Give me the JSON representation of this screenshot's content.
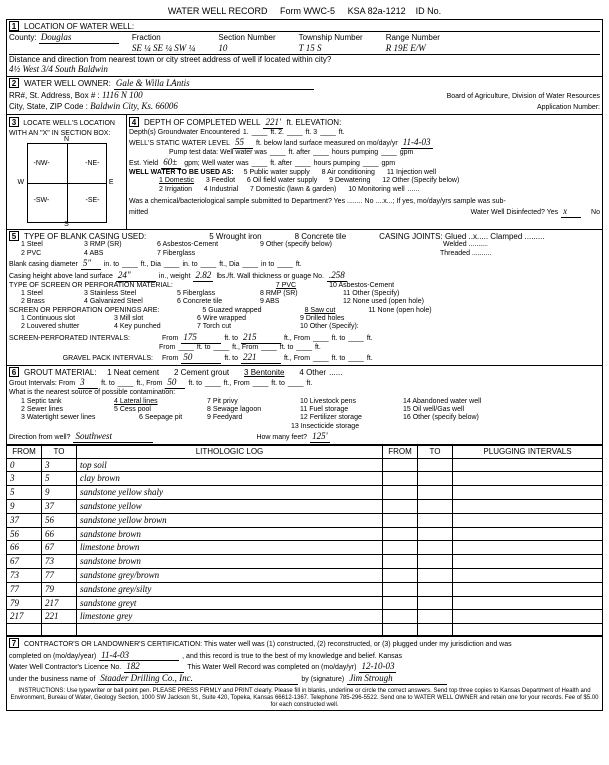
{
  "header": {
    "title": "WATER WELL RECORD",
    "form": "Form WWC-5",
    "ksa": "KSA 82a-1212",
    "idno_label": "ID No."
  },
  "s1": {
    "label": "LOCATION OF WATER WELL:",
    "county_label": "County:",
    "county": "Douglas",
    "fraction_label": "Fraction",
    "fraction": "SE ¼ SE ¼ SW ¼",
    "section_label": "Section Number",
    "section": "10",
    "township_label": "Township Number",
    "township": "T 15 S",
    "range_label": "Range Number",
    "range": "R 19E E/W",
    "dist_label": "Distance and direction from nearest town or city street address of well if located within city?",
    "dist": "4½ West 3/4 South Baldwin"
  },
  "s2": {
    "label": "WATER WELL OWNER:",
    "owner": "Gale & Willa LAntis",
    "addr_label": "RR#, St. Address, Box #   :",
    "addr": "1116 N 100",
    "city_label": "City, State, ZIP Code       :",
    "city": "Baldwin City, Ks. 66006",
    "board": "Board of Agriculture, Division of Water Resources",
    "appno": "Application Number:"
  },
  "s3": {
    "label": "LOCATE WELL'S LOCATION WITH AN \"X\" IN SECTION BOX:"
  },
  "s4": {
    "label": "DEPTH OF COMPLETED WELL",
    "depth": "221'",
    "elev": "ft. ELEVATION:",
    "gw": "Depth(s) Groundwater Encountered",
    "gw1": "1.",
    "gw2": "ft. 2.",
    "gw3": "ft. 3",
    "gw4": "ft.",
    "static_label": "WELL'S STATIC WATER LEVEL",
    "static": "55",
    "static2": "ft. below land surface measured on mo/day/yr",
    "static_date": "11-4-03",
    "pump": "Pump test data: Well water was",
    "pump2": "ft. after",
    "pump3": "hours pumping",
    "pump4": "gpm",
    "est": "Est. Yield",
    "est_v": "60±",
    "est2": "gpm; Well water was",
    "est3": "ft. after",
    "est4": "hours pumping",
    "est5": "gpm",
    "use_label": "WELL WATER TO BE USED AS:",
    "use5": "5 Public water supply",
    "use8": "8 Air conditioning",
    "use11": "11 Injection well",
    "use1": "1 Domestic",
    "use3": "3 Feedlot",
    "use6": "6 Oil field water supply",
    "use9": "9 Dewatering",
    "use12": "12 Other (Specify below)",
    "use2": "2 Irrigation",
    "use4": "4 Industrial",
    "use7": "7 Domestic (lawn & garden)",
    "use10": "10 Monitoring well",
    "chem": "Was a chemical/bacteriological sample submitted to Department? Yes ........ No ....x...; If yes, mo/day/yrs sample was sub-",
    "chem2": "mitted",
    "chem3": "Water Well Disinfected? Yes",
    "chem3x": "x",
    "chem4": "No"
  },
  "s5": {
    "label": "TYPE OF BLANK CASING USED:",
    "c1": "1 Steel",
    "c3": "3 RMP (SR)",
    "c5": "5 Wrought iron",
    "c8": "8 Concrete tile",
    "cj": "CASING JOINTS: Glued ..x..... Clamped .........",
    "c2": "2 PVC",
    "c4": "4 ABS",
    "c6": "6 Asbestos-Cement",
    "c9": "9 Other (specify below)",
    "cjw": "Welded ..........",
    "cjt": "Threaded ..........",
    "c7": "7 Fiberglass",
    "dia_label": "Blank casing diameter",
    "dia": "5\"",
    "dia2": "in. to",
    "dia3": "ft., Dia",
    "dia4": "in. to",
    "dia5": "ft., Dia",
    "dia6": "in to",
    "dia7": "ft.",
    "ht_label": "Casing height above land surface",
    "ht": "24\"",
    "wt_label": "in., weight",
    "wt": "2.82",
    "wt2": "lbs./ft. Wall thickness or guage No.",
    "gauge": ".258",
    "screen_label": "TYPE OF SCREEN OR PERFORATION MATERIAL:",
    "s1": "1 Steel",
    "s3": "3 Stainless Steel",
    "s5": "5 Fiberglass",
    "s7": "7 PVC",
    "s10": "10 Asbestos-Cement",
    "s2": "2 Brass",
    "s4": "4 Galvanized Steel",
    "s6": "6 Concrete tile",
    "s8": "8 RMP (SR)",
    "s11": "11 Other (Specify)",
    "s9": "9 ABS",
    "s12": "12 None used (open hole)",
    "open_label": "SCREEN OR PERFORATION OPENINGS ARE:",
    "o1": "1 Continuous slot",
    "o3": "3 Mill slot",
    "o5": "5 Guazed wrapped",
    "o8": "8 Saw cut",
    "o11": "11 None (open hole)",
    "o2": "2 Louvered shutter",
    "o4": "4 Key punched",
    "o6": "6 Wire wrapped",
    "o9": "9 Drilled holes",
    "o7": "7 Torch cut",
    "o10": "10 Other (Specify):",
    "spi": "SCREEN-PERFORATED INTERVALS:",
    "spi_f1": "175",
    "spi_t1": "215",
    "gpi": "GRAVEL PACK INTERVALS:",
    "gpi_f1": "50",
    "gpi_t1": "221",
    "from": "From",
    "to": "ft. to",
    "ft": "ft., From",
    "ft2": "ft. to",
    "ft3": "ft."
  },
  "s6": {
    "label": "GROUT MATERIAL:",
    "g1": "1 Neat cement",
    "g2": "2 Cement grout",
    "g3": "3 Bentonite",
    "g4": "4 Other",
    "gi": "Grout Intervals: From",
    "gi_f": "3",
    "gi_t": "ft. to",
    "gi_f2": "ft., From",
    "gi_v2": "50",
    "gi_t2": "ft. to",
    "gi_t3": "ft., From",
    "gi_t4": "ft. to",
    "gi_t5": "ft.",
    "contam": "What is the nearest source of possible contamination:",
    "p1": "1 Septic tank",
    "p4": "4 Lateral lines",
    "p7": "7 Pit privy",
    "p10": "10 Livestock pens",
    "p14": "14 Abandoned water well",
    "p2": "2 Sewer lines",
    "p5": "5 Cess pool",
    "p8": "8 Sewage lagoon",
    "p11": "11 Fuel storage",
    "p15": "15 Oil well/Gas well",
    "p3": "3 Watertight sewer lines",
    "p6": "6 Seepage pit",
    "p9": "9 Feedyard",
    "p12": "12 Fertilizer storage",
    "p16": "16 Other (specify below)",
    "p13": "13 Insecticide storage",
    "dir_label": "Direction from well?",
    "dir": "Southwest",
    "feet_label": "How many feet?",
    "feet": "125'"
  },
  "log": {
    "h_from": "FROM",
    "h_to": "TO",
    "h_lith": "LITHOLOGIC LOG",
    "h_plug": "PLUGGING INTERVALS",
    "rows": [
      {
        "f": "0",
        "t": "3",
        "l": "top soil"
      },
      {
        "f": "3",
        "t": "5",
        "l": "clay brown"
      },
      {
        "f": "5",
        "t": "9",
        "l": "sandstone yellow shaly"
      },
      {
        "f": "9",
        "t": "37",
        "l": "sandstone yellow"
      },
      {
        "f": "37",
        "t": "56",
        "l": "sandstone yellow brown"
      },
      {
        "f": "56",
        "t": "66",
        "l": "sandstone brown"
      },
      {
        "f": "66",
        "t": "67",
        "l": "limestone brown"
      },
      {
        "f": "67",
        "t": "73",
        "l": "sandstone brown"
      },
      {
        "f": "73",
        "t": "77",
        "l": "sandstone grey/brown"
      },
      {
        "f": "77",
        "t": "79",
        "l": "sandstone grey/silty"
      },
      {
        "f": "79",
        "t": "217",
        "l": "sandstone greyt"
      },
      {
        "f": "217",
        "t": "221",
        "l": "limestone grey"
      },
      {
        "f": "",
        "t": "",
        "l": ""
      }
    ]
  },
  "s7": {
    "cert": "CONTRACTOR'S OR LANDOWNER'S CERTIFICATION: This water well was (1) constructed, (2) reconstructed, or (3) plugged under my jurisdiction and was",
    "comp": "completed on (mo/day/year)",
    "comp_v": "11-4-03",
    "comp2": ", and this record is true to the best of my knowledge and belief. Kansas",
    "lic": "Water Well Contractor's Licence No.",
    "lic_v": "182",
    "lic2": "This Water Well Record was completed on (mo/day/yr)",
    "lic_date": "12-10-03",
    "bus": "under the business name of",
    "bus_v": "Staader Drilling Co., Inc.",
    "sig": "by (signature)",
    "instr": "INSTRUCTIONS: Use typewriter or ball point pen. PLEASE PRESS FIRMLY and PRINT clearly. Please fill in blanks, underline or circle the correct answers. Send top three copies to Kansas Department of Health and Environment, Bureau of Water, Geology Section, 1000 SW Jackson St., Suite 420, Topeka, Kansas 66612-1367. Telephone 785-296-5522. Send one to WATER WELL OWNER and retain one for your records. Fee of $5.00 for each constructed well."
  }
}
